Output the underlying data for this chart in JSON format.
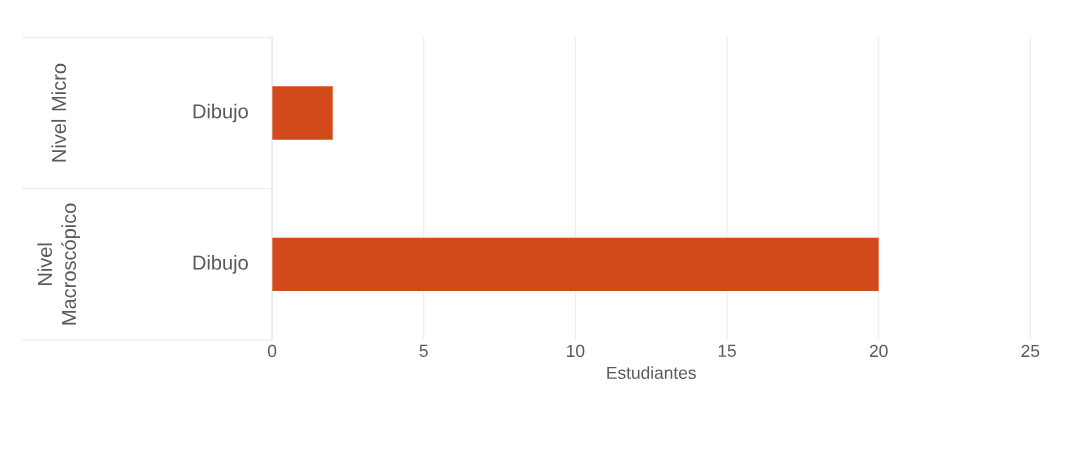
{
  "chart_data": {
    "type": "bar",
    "orientation": "horizontal",
    "categories": [
      "Dibujo",
      "Dibujo"
    ],
    "values": [
      2,
      20
    ],
    "color": "#d24a19",
    "xlabel": "Estudiantes",
    "annotations": [
      "Nivel Micro",
      "Nivel Macroscópico"
    ],
    "xlim": [
      0,
      25
    ],
    "xticks": [
      0,
      5,
      10,
      15,
      20,
      25
    ],
    "grid": "x"
  }
}
